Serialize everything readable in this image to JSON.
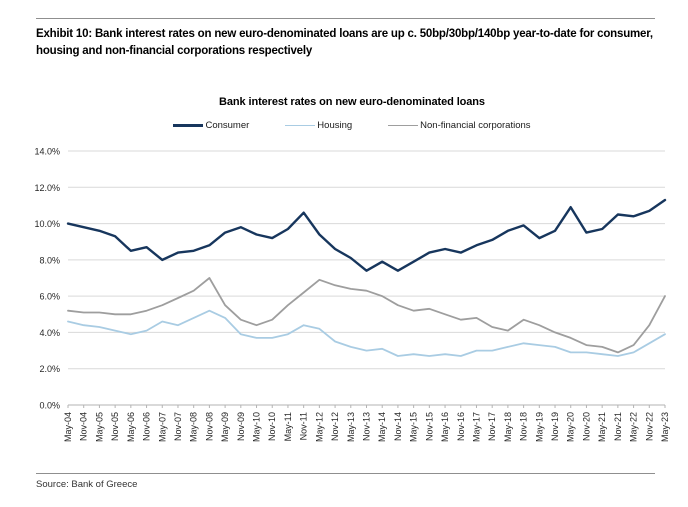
{
  "page": {
    "exhibit_title": "Exhibit 10: Bank interest rates on new euro-denominated loans are up c. 50bp/30bp/140bp year-to-date for consumer, housing and non-financial corporations respectively",
    "source": "Source: Bank of Greece"
  },
  "chart_data": {
    "type": "line",
    "title": "Bank interest rates on new euro-denominated loans",
    "xlabel": "",
    "ylabel": "",
    "ylim": [
      0,
      14
    ],
    "y_tick_step": 2,
    "y_tick_labels": [
      "0.0%",
      "2.0%",
      "4.0%",
      "6.0%",
      "8.0%",
      "10.0%",
      "12.0%",
      "14.0%"
    ],
    "grid": "horizontal",
    "legend_position": "top-center",
    "colors": {
      "consumer": "#17365d",
      "housing": "#a9cce3",
      "non_financial_corporations": "#9e9e9e",
      "gridline": "#d9d9d9",
      "axis": "#b3b3b3",
      "tick_text": "#262626"
    },
    "x_tick_labels": [
      "May-04",
      "Nov-04",
      "May-05",
      "Nov-05",
      "May-06",
      "Nov-06",
      "May-07",
      "Nov-07",
      "May-08",
      "Nov-08",
      "May-09",
      "Nov-09",
      "May-10",
      "Nov-10",
      "May-11",
      "Nov-11",
      "May-12",
      "Nov-12",
      "May-13",
      "Nov-13",
      "May-14",
      "Nov-14",
      "May-15",
      "Nov-15",
      "May-16",
      "Nov-16",
      "May-17",
      "Nov-17",
      "May-18",
      "Nov-18",
      "May-19",
      "Nov-19",
      "May-20",
      "Nov-20",
      "May-21",
      "Nov-21",
      "May-22",
      "Nov-22",
      "May-23"
    ],
    "series": [
      {
        "name": "Consumer",
        "color": "#17365d",
        "stroke_width": 2.4,
        "values": [
          10.0,
          9.8,
          9.6,
          9.3,
          8.5,
          8.7,
          8.0,
          8.4,
          8.5,
          8.8,
          9.5,
          9.8,
          9.4,
          9.2,
          9.7,
          10.6,
          9.4,
          8.6,
          8.1,
          7.4,
          7.9,
          7.4,
          7.9,
          8.4,
          8.6,
          8.4,
          8.8,
          9.1,
          9.6,
          9.9,
          9.2,
          9.6,
          10.9,
          9.5,
          9.7,
          10.5,
          10.4,
          10.7,
          11.3
        ]
      },
      {
        "name": "Housing",
        "color": "#a9cce3",
        "stroke_width": 1.8,
        "values": [
          4.6,
          4.4,
          4.3,
          4.1,
          3.9,
          4.1,
          4.6,
          4.4,
          4.8,
          5.2,
          4.8,
          3.9,
          3.7,
          3.7,
          3.9,
          4.4,
          4.2,
          3.5,
          3.2,
          3.0,
          3.1,
          2.7,
          2.8,
          2.7,
          2.8,
          2.7,
          3.0,
          3.0,
          3.2,
          3.4,
          3.3,
          3.2,
          2.9,
          2.9,
          2.8,
          2.7,
          2.9,
          3.4,
          3.9
        ]
      },
      {
        "name": "Non-financial corporations",
        "color": "#9e9e9e",
        "stroke_width": 1.8,
        "values": [
          5.2,
          5.1,
          5.1,
          5.0,
          5.0,
          5.2,
          5.5,
          5.9,
          6.3,
          7.0,
          5.5,
          4.7,
          4.4,
          4.7,
          5.5,
          6.2,
          6.9,
          6.6,
          6.4,
          6.3,
          6.0,
          5.5,
          5.2,
          5.3,
          5.0,
          4.7,
          4.8,
          4.3,
          4.1,
          4.7,
          4.4,
          4.0,
          3.7,
          3.3,
          3.2,
          2.9,
          3.3,
          4.4,
          6.0
        ]
      }
    ]
  }
}
